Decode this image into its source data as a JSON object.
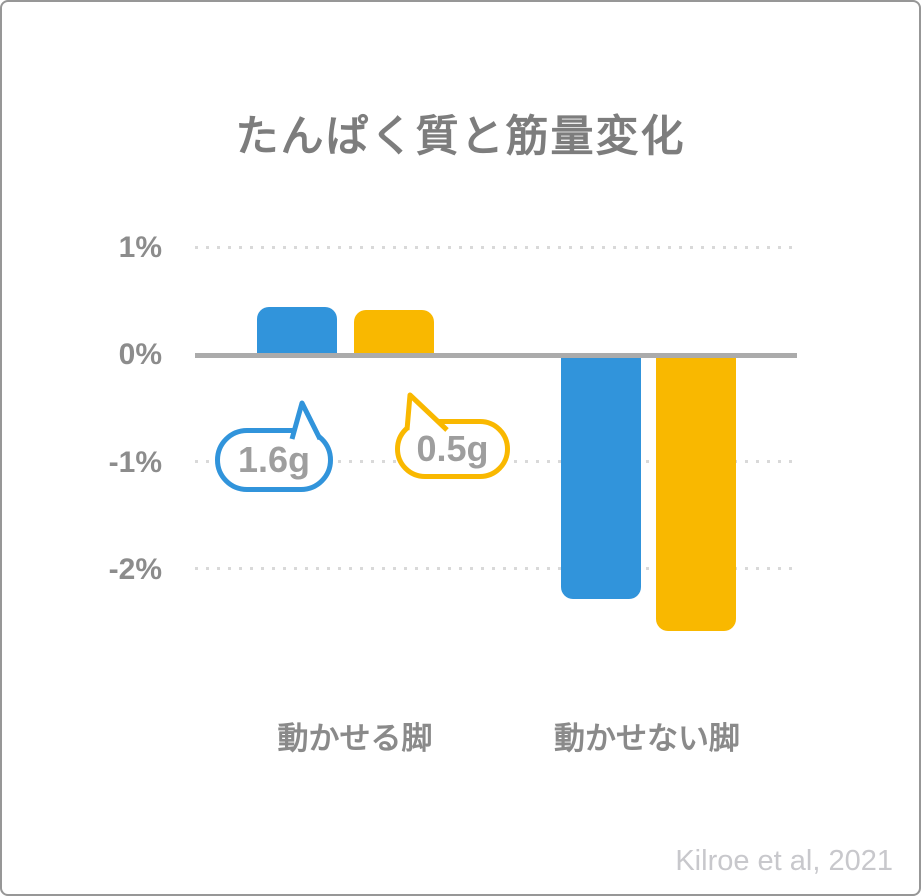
{
  "chart_data": {
    "type": "bar",
    "title": "たんぱく質と筋量変化",
    "categories": [
      "動かせる脚",
      "動かせない脚"
    ],
    "series": [
      {
        "name": "1.6g",
        "color": "#3194db",
        "values": [
          0.45,
          -2.27
        ]
      },
      {
        "name": "0.5g",
        "color": "#f9b800",
        "values": [
          0.42,
          -2.57
        ]
      }
    ],
    "unit": "% muscle mass change",
    "y_ticks": [
      "1%",
      "0%",
      "-1%",
      "-2%"
    ],
    "ylim": [
      -2.9,
      1.35
    ],
    "grid": "horizontal dotted lines at 1%, -1%, -2%; solid gray baseline at 0%",
    "legend_position": "speech-bubble callouts near the -1% line pointing at the bars",
    "annotations": [
      {
        "text": "1.6g",
        "series_color": "#3194db",
        "shape": "speech-bubble"
      },
      {
        "text": "0.5g",
        "series_color": "#f9b800",
        "shape": "speech-bubble"
      }
    ],
    "source": "Kilroe et al, 2021"
  },
  "layout_colors": {
    "title_text": "#7d7d7d",
    "axis_text": "#8c8c8c",
    "bubble_text": "#9e9e9e",
    "zero_line": "#ababab",
    "gridline": "#d9d9d9",
    "card_border": "#979797",
    "source_text": "#c8c8cc"
  }
}
